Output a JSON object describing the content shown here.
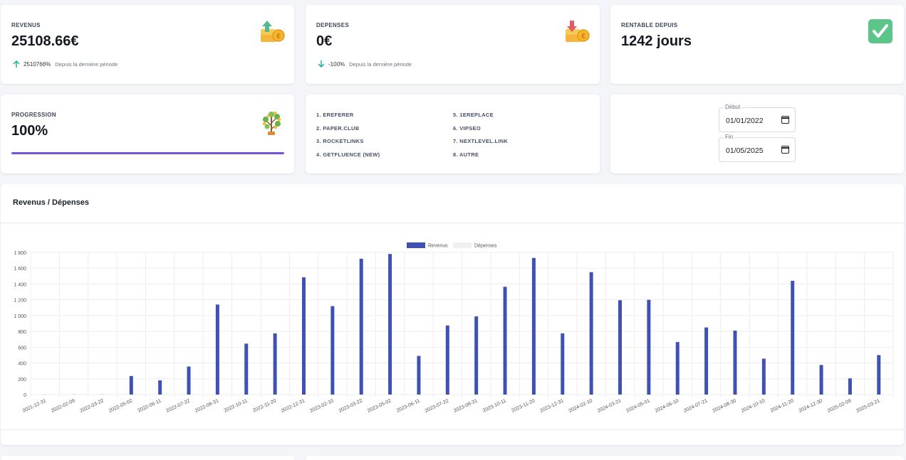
{
  "revenus": {
    "label": "REVENUS",
    "value": "25108.66€",
    "trend_value": "2510766%",
    "trend_text": "Depuis la dernière période",
    "icon": "coins-up-icon"
  },
  "depenses": {
    "label": "DEPENSES",
    "value": "0€",
    "trend_value": "-100%",
    "trend_text": "Depuis la dernière période",
    "icon": "coins-down-icon"
  },
  "rentable": {
    "label": "RENTABLE DEPUIS",
    "value": "1242 jours",
    "icon": "check-icon"
  },
  "progression": {
    "label": "PROGRESSION",
    "value": "100%",
    "progress": 1.0,
    "icon": "money-tree-icon"
  },
  "platforms": [
    "1. EREFERER",
    "5. 1EREPLACE",
    "2. PAPER.CLUB",
    "6. VIPSEO",
    "3. ROCKETLINKS",
    "7. NEXTLEVEL.LINK",
    "4. GETFLUENCE (NEW)",
    "8. AUTRE"
  ],
  "dates": {
    "start_label": "Début",
    "start_value": "01/01/2022",
    "end_label": "Fin",
    "end_value": "01/05/2025"
  },
  "chart_title": "Revenus / Dépenses",
  "colors": {
    "revenus": "#3f51b5",
    "depenses": "#f0f0f0",
    "progress": "#7b4fd8",
    "up": "#18a999",
    "check": "#5cc58a"
  },
  "chart_data": {
    "type": "bar",
    "categories": [
      "2021-12-31",
      "2022-02-09",
      "2022-03-22",
      "2022-05-02",
      "2022-06-11",
      "2022-07-22",
      "2022-08-31",
      "2022-10-11",
      "2022-11-20",
      "2022-12-31",
      "2023-02-10",
      "2023-03-22",
      "2023-05-02",
      "2023-06-11",
      "2023-07-22",
      "2023-08-31",
      "2023-10-11",
      "2023-11-20",
      "2023-12-31",
      "2024-02-10",
      "2024-03-21",
      "2024-05-01",
      "2024-06-10",
      "2024-07-21",
      "2024-08-30",
      "2024-10-10",
      "2024-11-20",
      "2024-12-30",
      "2025-02-09",
      "2025-03-21"
    ],
    "series": [
      {
        "name": "Revenus",
        "values": [
          3,
          3,
          3,
          235,
          180,
          355,
          1140,
          645,
          775,
          1485,
          1120,
          1720,
          1780,
          490,
          875,
          990,
          1365,
          1730,
          775,
          1550,
          1195,
          1200,
          665,
          850,
          810,
          455,
          1440,
          375,
          205,
          500
        ]
      },
      {
        "name": "Dépenses",
        "values": [
          0,
          0,
          0,
          0,
          0,
          0,
          0,
          0,
          0,
          0,
          0,
          0,
          0,
          0,
          0,
          0,
          0,
          0,
          0,
          0,
          0,
          0,
          0,
          0,
          0,
          0,
          0,
          0,
          0,
          0
        ]
      }
    ],
    "y_ticks": [
      "0",
      "200",
      "400",
      "600",
      "800",
      "1 000",
      "1 200",
      "1 400",
      "1 600",
      "1 800"
    ],
    "ylim": [
      0,
      1800
    ],
    "grid": true,
    "legend": "top-center"
  }
}
